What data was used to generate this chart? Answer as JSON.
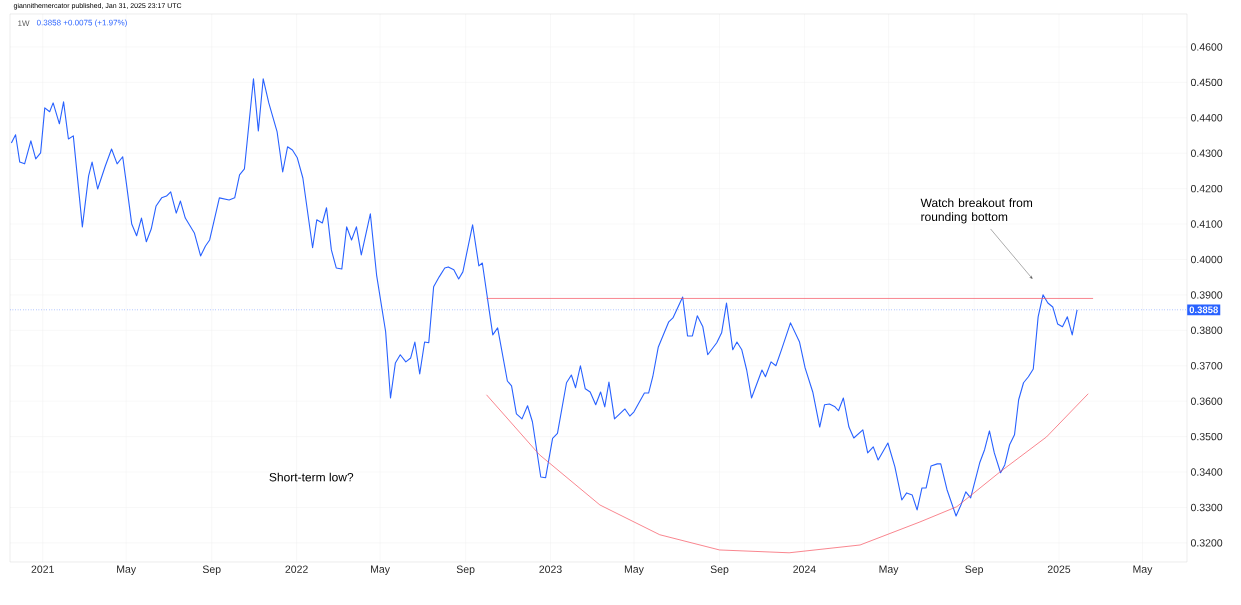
{
  "chart_data": {
    "type": "line",
    "title": "1W",
    "subtitle": "0.3858 +0.0075 (+1.97%)",
    "annotations": [
      "giannithemercator published, Jan 31, 2025 23:17 UTC",
      {
        "text": "Watch breakout from rounding bottom",
        "x": "2024-11-24",
        "y": 0.3945
      },
      "Short-term low?"
    ],
    "xlim": [
      "2020-11-15",
      "2025-07-04"
    ],
    "ylim": [
      0.3146,
      0.4693
    ],
    "xticks": [
      {
        "value": "2021-01-01",
        "label": "2021"
      },
      {
        "value": "2021-05-01",
        "label": "May"
      },
      {
        "value": "2021-09-01",
        "label": "Sep"
      },
      {
        "value": "2022-01-01",
        "label": "2022"
      },
      {
        "value": "2022-05-01",
        "label": "May"
      },
      {
        "value": "2022-09-01",
        "label": "Sep"
      },
      {
        "value": "2023-01-01",
        "label": "2023"
      },
      {
        "value": "2023-05-01",
        "label": "May"
      },
      {
        "value": "2023-09-01",
        "label": "Sep"
      },
      {
        "value": "2024-01-01",
        "label": "2024"
      },
      {
        "value": "2024-05-01",
        "label": "May"
      },
      {
        "value": "2024-09-01",
        "label": "Sep"
      },
      {
        "value": "2025-01-01",
        "label": "2025"
      },
      {
        "value": "2025-05-01",
        "label": "May"
      }
    ],
    "yticks": [
      {
        "value": 0.32,
        "label": "0.3200"
      },
      {
        "value": 0.33,
        "label": "0.3300"
      },
      {
        "value": 0.34,
        "label": "0.3400"
      },
      {
        "value": 0.35,
        "label": "0.3500"
      },
      {
        "value": 0.36,
        "label": "0.3600"
      },
      {
        "value": 0.37,
        "label": "0.3700"
      },
      {
        "value": 0.38,
        "label": "0.3800"
      },
      {
        "value": 0.39,
        "label": "0.3900"
      },
      {
        "value": 0.4,
        "label": "0.4000"
      },
      {
        "value": 0.41,
        "label": "0.4100"
      },
      {
        "value": 0.42,
        "label": "0.4200"
      },
      {
        "value": 0.43,
        "label": "0.4300"
      },
      {
        "value": 0.44,
        "label": "0.4400"
      },
      {
        "value": 0.45,
        "label": "0.4500"
      },
      {
        "value": 0.46,
        "label": "0.4600"
      }
    ],
    "grid": true,
    "marker": "none",
    "line_style": "solid",
    "ref_lines": [
      {
        "axis": "y",
        "value": 0.3858,
        "label": "0.3858",
        "color": "#2962ff",
        "line_style": "dotted"
      }
    ],
    "series": [
      {
        "color": "#2962ff",
        "x": [
          "2020-11-17",
          "2020-11-23",
          "2020-11-29",
          "2020-12-06",
          "2020-12-15",
          "2020-12-22",
          "2020-12-29",
          "2021-01-04",
          "2021-01-11",
          "2021-01-16",
          "2021-01-25",
          "2021-01-31",
          "2021-02-07",
          "2021-02-14",
          "2021-02-27",
          "2021-03-08",
          "2021-03-13",
          "2021-03-21",
          "2021-04-01",
          "2021-04-10",
          "2021-04-18",
          "2021-04-26",
          "2021-05-01",
          "2021-05-09",
          "2021-05-16",
          "2021-05-23",
          "2021-05-30",
          "2021-06-06",
          "2021-06-13",
          "2021-06-21",
          "2021-06-28",
          "2021-07-04",
          "2021-07-12",
          "2021-07-18",
          "2021-07-25",
          "2021-08-07",
          "2021-08-16",
          "2021-08-23",
          "2021-08-29",
          "2021-09-12",
          "2021-09-26",
          "2021-10-04",
          "2021-10-11",
          "2021-10-18",
          "2021-10-31",
          "2021-11-07",
          "2021-11-14",
          "2021-11-22",
          "2021-12-04",
          "2021-12-12",
          "2021-12-19",
          "2021-12-26",
          "2022-01-02",
          "2022-01-10",
          "2022-01-24",
          "2022-01-30",
          "2022-02-07",
          "2022-02-13",
          "2022-02-20",
          "2022-02-27",
          "2022-03-07",
          "2022-03-14",
          "2022-03-21",
          "2022-03-28",
          "2022-04-04",
          "2022-04-17",
          "2022-04-26",
          "2022-05-09",
          "2022-05-16",
          "2022-05-23",
          "2022-05-30",
          "2022-06-07",
          "2022-06-14",
          "2022-06-20",
          "2022-06-27",
          "2022-07-04",
          "2022-07-10",
          "2022-07-17",
          "2022-07-25",
          "2022-08-02",
          "2022-08-07",
          "2022-08-15",
          "2022-08-22",
          "2022-08-28",
          "2022-09-11",
          "2022-09-20",
          "2022-09-25",
          "2022-10-10",
          "2022-10-17",
          "2022-10-31",
          "2022-11-06",
          "2022-11-13",
          "2022-11-21",
          "2022-11-29",
          "2022-12-06",
          "2022-12-18",
          "2022-12-25",
          "2023-01-04",
          "2023-01-11",
          "2023-01-24",
          "2023-01-31",
          "2023-02-06",
          "2023-02-13",
          "2023-02-20",
          "2023-02-27",
          "2023-03-07",
          "2023-03-14",
          "2023-03-20",
          "2023-03-26",
          "2023-04-03",
          "2023-04-18",
          "2023-04-25",
          "2023-05-01",
          "2023-05-16",
          "2023-05-22",
          "2023-05-28",
          "2023-06-05",
          "2023-06-20",
          "2023-06-26",
          "2023-07-10",
          "2023-07-17",
          "2023-07-24",
          "2023-07-31",
          "2023-08-08",
          "2023-08-15",
          "2023-08-28",
          "2023-09-04",
          "2023-09-11",
          "2023-09-20",
          "2023-09-26",
          "2023-10-03",
          "2023-10-10",
          "2023-10-17",
          "2023-11-01",
          "2023-11-06",
          "2023-11-14",
          "2023-11-21",
          "2023-11-29",
          "2023-12-12",
          "2023-12-25",
          "2024-01-02",
          "2024-01-13",
          "2024-01-23",
          "2024-01-30",
          "2024-02-06",
          "2024-02-14",
          "2024-02-19",
          "2024-02-26",
          "2024-03-05",
          "2024-03-12",
          "2024-03-25",
          "2024-04-01",
          "2024-04-09",
          "2024-04-16",
          "2024-04-30",
          "2024-05-10",
          "2024-05-20",
          "2024-05-27",
          "2024-06-04",
          "2024-06-11",
          "2024-06-18",
          "2024-06-24",
          "2024-07-01",
          "2024-07-10",
          "2024-07-15",
          "2024-07-24",
          "2024-08-06",
          "2024-08-13",
          "2024-08-20",
          "2024-08-27",
          "2024-09-09",
          "2024-09-16",
          "2024-09-23",
          "2024-09-30",
          "2024-10-09",
          "2024-10-15",
          "2024-10-22",
          "2024-10-29",
          "2024-11-04",
          "2024-11-11",
          "2024-11-18",
          "2024-11-25",
          "2024-12-02",
          "2024-12-09",
          "2024-12-16",
          "2024-12-23",
          "2024-12-30",
          "2025-01-06",
          "2025-01-13",
          "2025-01-20",
          "2025-01-27"
        ],
        "values": [
          0.4329,
          0.4352,
          0.4275,
          0.427,
          0.4335,
          0.4284,
          0.4301,
          0.4428,
          0.4417,
          0.4442,
          0.4383,
          0.4445,
          0.434,
          0.4349,
          0.4092,
          0.4236,
          0.4275,
          0.4199,
          0.4264,
          0.4312,
          0.427,
          0.429,
          0.4219,
          0.41,
          0.4067,
          0.4117,
          0.405,
          0.4086,
          0.4151,
          0.4174,
          0.4179,
          0.4191,
          0.4131,
          0.4165,
          0.4117,
          0.4075,
          0.401,
          0.4038,
          0.4055,
          0.4174,
          0.4168,
          0.4174,
          0.4239,
          0.4256,
          0.451,
          0.4363,
          0.451,
          0.4442,
          0.436,
          0.4247,
          0.4318,
          0.4309,
          0.4287,
          0.423,
          0.4033,
          0.4112,
          0.4103,
          0.4146,
          0.4027,
          0.3976,
          0.3973,
          0.4092,
          0.4055,
          0.4092,
          0.4013,
          0.4129,
          0.3956,
          0.3796,
          0.3609,
          0.3708,
          0.3731,
          0.3711,
          0.3722,
          0.3767,
          0.3677,
          0.3767,
          0.3765,
          0.3923,
          0.3951,
          0.3976,
          0.3979,
          0.3971,
          0.3945,
          0.3965,
          0.4098,
          0.3982,
          0.399,
          0.3787,
          0.3807,
          0.3657,
          0.3643,
          0.3564,
          0.355,
          0.3587,
          0.3542,
          0.3386,
          0.3384,
          0.3495,
          0.3509,
          0.3652,
          0.3674,
          0.3638,
          0.37,
          0.3635,
          0.3626,
          0.359,
          0.3626,
          0.3584,
          0.3654,
          0.355,
          0.3578,
          0.3558,
          0.357,
          0.3623,
          0.3623,
          0.3669,
          0.3753,
          0.3824,
          0.3835,
          0.3894,
          0.3784,
          0.3784,
          0.3841,
          0.381,
          0.3731,
          0.3765,
          0.3793,
          0.3877,
          0.3745,
          0.3767,
          0.3745,
          0.3688,
          0.3609,
          0.3688,
          0.3669,
          0.3711,
          0.37,
          0.3745,
          0.3821,
          0.3767,
          0.3694,
          0.3626,
          0.3527,
          0.359,
          0.3592,
          0.3584,
          0.3573,
          0.3609,
          0.3527,
          0.3496,
          0.3519,
          0.3454,
          0.3471,
          0.3434,
          0.3482,
          0.3415,
          0.3321,
          0.3341,
          0.3335,
          0.3293,
          0.3355,
          0.3355,
          0.3417,
          0.3423,
          0.3423,
          0.335,
          0.3276,
          0.3307,
          0.3344,
          0.3327,
          0.3426,
          0.3463,
          0.3516,
          0.3454,
          0.3398,
          0.342,
          0.3477,
          0.3505,
          0.3604,
          0.3652,
          0.3669,
          0.3691,
          0.3838,
          0.39,
          0.3877,
          0.3866,
          0.3818,
          0.381,
          0.3838,
          0.3787,
          0.3858
        ]
      },
      {
        "color": "#f7525f",
        "x": [
          "2022-10-01",
          "2025-02-19"
        ],
        "values": [
          0.389,
          0.389
        ]
      },
      {
        "color": "#f7525f",
        "x": [
          "2022-10-01",
          "2022-12-16",
          "2023-03-13",
          "2023-06-07",
          "2023-09-01",
          "2023-12-10",
          "2024-03-21",
          "2024-06-15",
          "2024-08-07",
          "2024-10-08",
          "2024-12-14",
          "2025-02-12"
        ],
        "values": [
          0.3618,
          0.3449,
          0.3307,
          0.3223,
          0.318,
          0.3172,
          0.3194,
          0.3259,
          0.3302,
          0.34,
          0.3499,
          0.3621
        ]
      }
    ]
  }
}
